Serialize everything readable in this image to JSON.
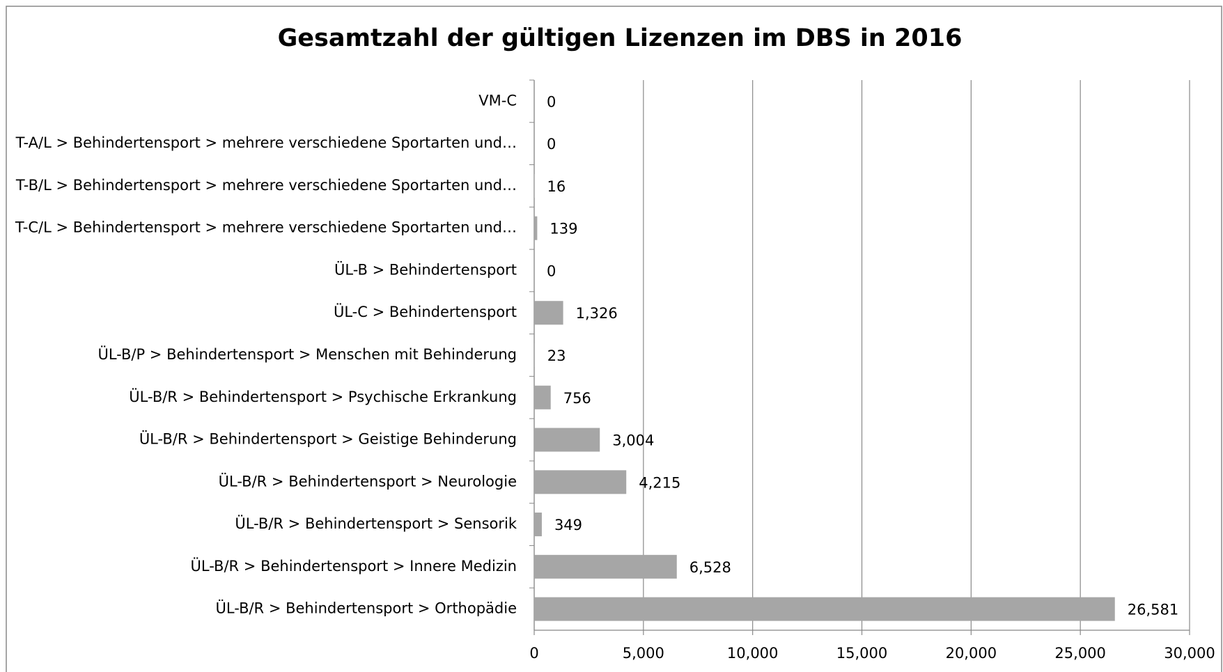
{
  "chart_data": {
    "type": "barh",
    "title": "Gesamtzahl der gültigen Lizenzen im DBS in 2016",
    "categories": [
      "VM-C",
      "T-A/L > Behindertensport > mehrere verschiedene Sportarten und…",
      "T-B/L > Behindertensport > mehrere verschiedene Sportarten und…",
      "T-C/L > Behindertensport > mehrere verschiedene Sportarten und…",
      "ÜL-B > Behindertensport",
      "ÜL-C > Behindertensport",
      "ÜL-B/P > Behindertensport > Menschen mit Behinderung",
      "ÜL-B/R > Behindertensport > Psychische Erkrankung",
      "ÜL-B/R > Behindertensport > Geistige Behinderung",
      "ÜL-B/R > Behindertensport > Neurologie",
      "ÜL-B/R > Behindertensport > Sensorik",
      "ÜL-B/R > Behindertensport > Innere Medizin",
      "ÜL-B/R > Behindertensport > Orthopädie"
    ],
    "values": [
      0,
      0,
      16,
      139,
      0,
      1326,
      23,
      756,
      3004,
      4215,
      349,
      6528,
      26581
    ],
    "value_labels": [
      "0",
      "0",
      "16",
      "139",
      "0",
      "1,326",
      "23",
      "756",
      "3,004",
      "4,215",
      "349",
      "6,528",
      "26,581"
    ],
    "color": "#a6a6a6",
    "xlim": [
      0,
      30000
    ],
    "xticks": [
      0,
      {
        "value": 5000,
        "label": "5,000"
      },
      {
        "value": 10000,
        "label": "10,000"
      },
      {
        "value": 15000,
        "label": "15,000"
      },
      {
        "value": 20000,
        "label": "20,000"
      },
      {
        "value": 25000,
        "label": "25,000"
      },
      {
        "value": 30000,
        "label": "30,000"
      }
    ],
    "grid": true
  }
}
